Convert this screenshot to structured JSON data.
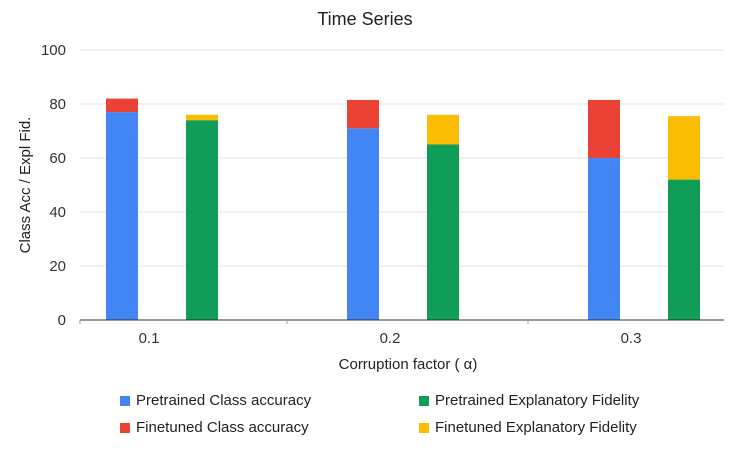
{
  "chart_data": {
    "type": "bar",
    "stacked": true,
    "title": "Time Series",
    "xlabel": "Corruption factor ( α)",
    "ylabel": "Class Acc / Expl Fid.",
    "ylim": [
      0,
      100
    ],
    "yticks": [
      "0",
      "20",
      "40",
      "60",
      "80",
      "100"
    ],
    "categories": [
      "0.1",
      "0.2",
      "0.3"
    ],
    "grid": true,
    "legend_position": "bottom",
    "bar_groups": [
      {
        "name": "Class accuracy",
        "stack": [
          {
            "name": "Pretrained Class accuracy",
            "color": "#4285f4",
            "values": [
              77,
              71,
              60
            ]
          },
          {
            "name": "Finetuned Class accuracy",
            "color": "#ea4335",
            "values": [
              5,
              10.5,
              21.5
            ]
          }
        ]
      },
      {
        "name": "Explanatory Fidelity",
        "stack": [
          {
            "name": "Pretrained Explanatory Fidelity",
            "color": "#0f9d58",
            "values": [
              74,
              65,
              52
            ]
          },
          {
            "name": "Finetuned Explanatory Fidelity",
            "color": "#fbbc04",
            "values": [
              2,
              11,
              23.5
            ]
          }
        ]
      }
    ]
  },
  "legend": {
    "items": [
      {
        "label": "Pretrained Class accuracy",
        "color": "#4285f4"
      },
      {
        "label": "Pretrained Explanatory Fidelity",
        "color": "#0f9d58"
      },
      {
        "label": "Finetuned Class accuracy",
        "color": "#ea4335"
      },
      {
        "label": "Finetuned Explanatory Fidelity",
        "color": "#fbbc04"
      }
    ]
  }
}
